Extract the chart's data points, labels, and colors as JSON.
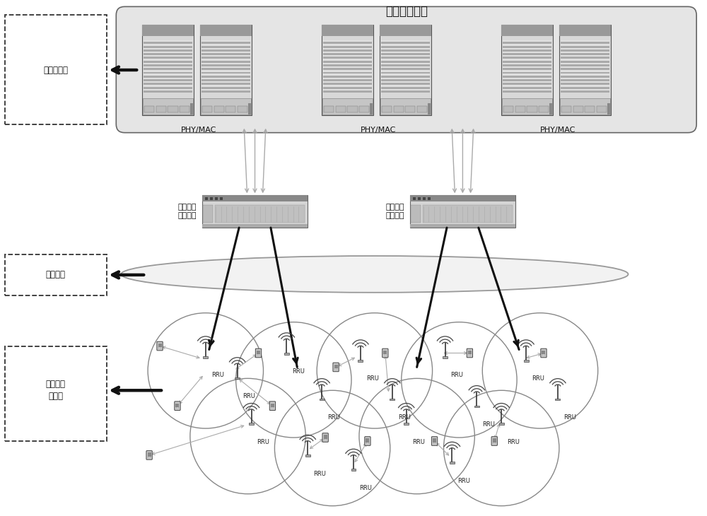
{
  "title": "虚拟基站集群",
  "label_baseband": "基带处理池",
  "label_optical": "光传输网",
  "label_wireless_1": "分布式无",
  "label_wireless_2": "线网络",
  "label_lb_1": "负载均衡",
  "label_lb_2": "高速交换",
  "label_phymac": "PHY/MAC",
  "label_rru": "RRU",
  "bg_color": "#ffffff",
  "cloud_bg": "#e8e8e8",
  "server_body": "#d0d0d0",
  "server_stripe": "#b0b0b0",
  "server_dark": "#808080",
  "switch_body": "#cccccc",
  "dashed_color": "#333333",
  "arrow_gray": "#aaaaaa",
  "arrow_black": "#111111",
  "circle_color": "#888888",
  "ellipse_color": "#999999"
}
